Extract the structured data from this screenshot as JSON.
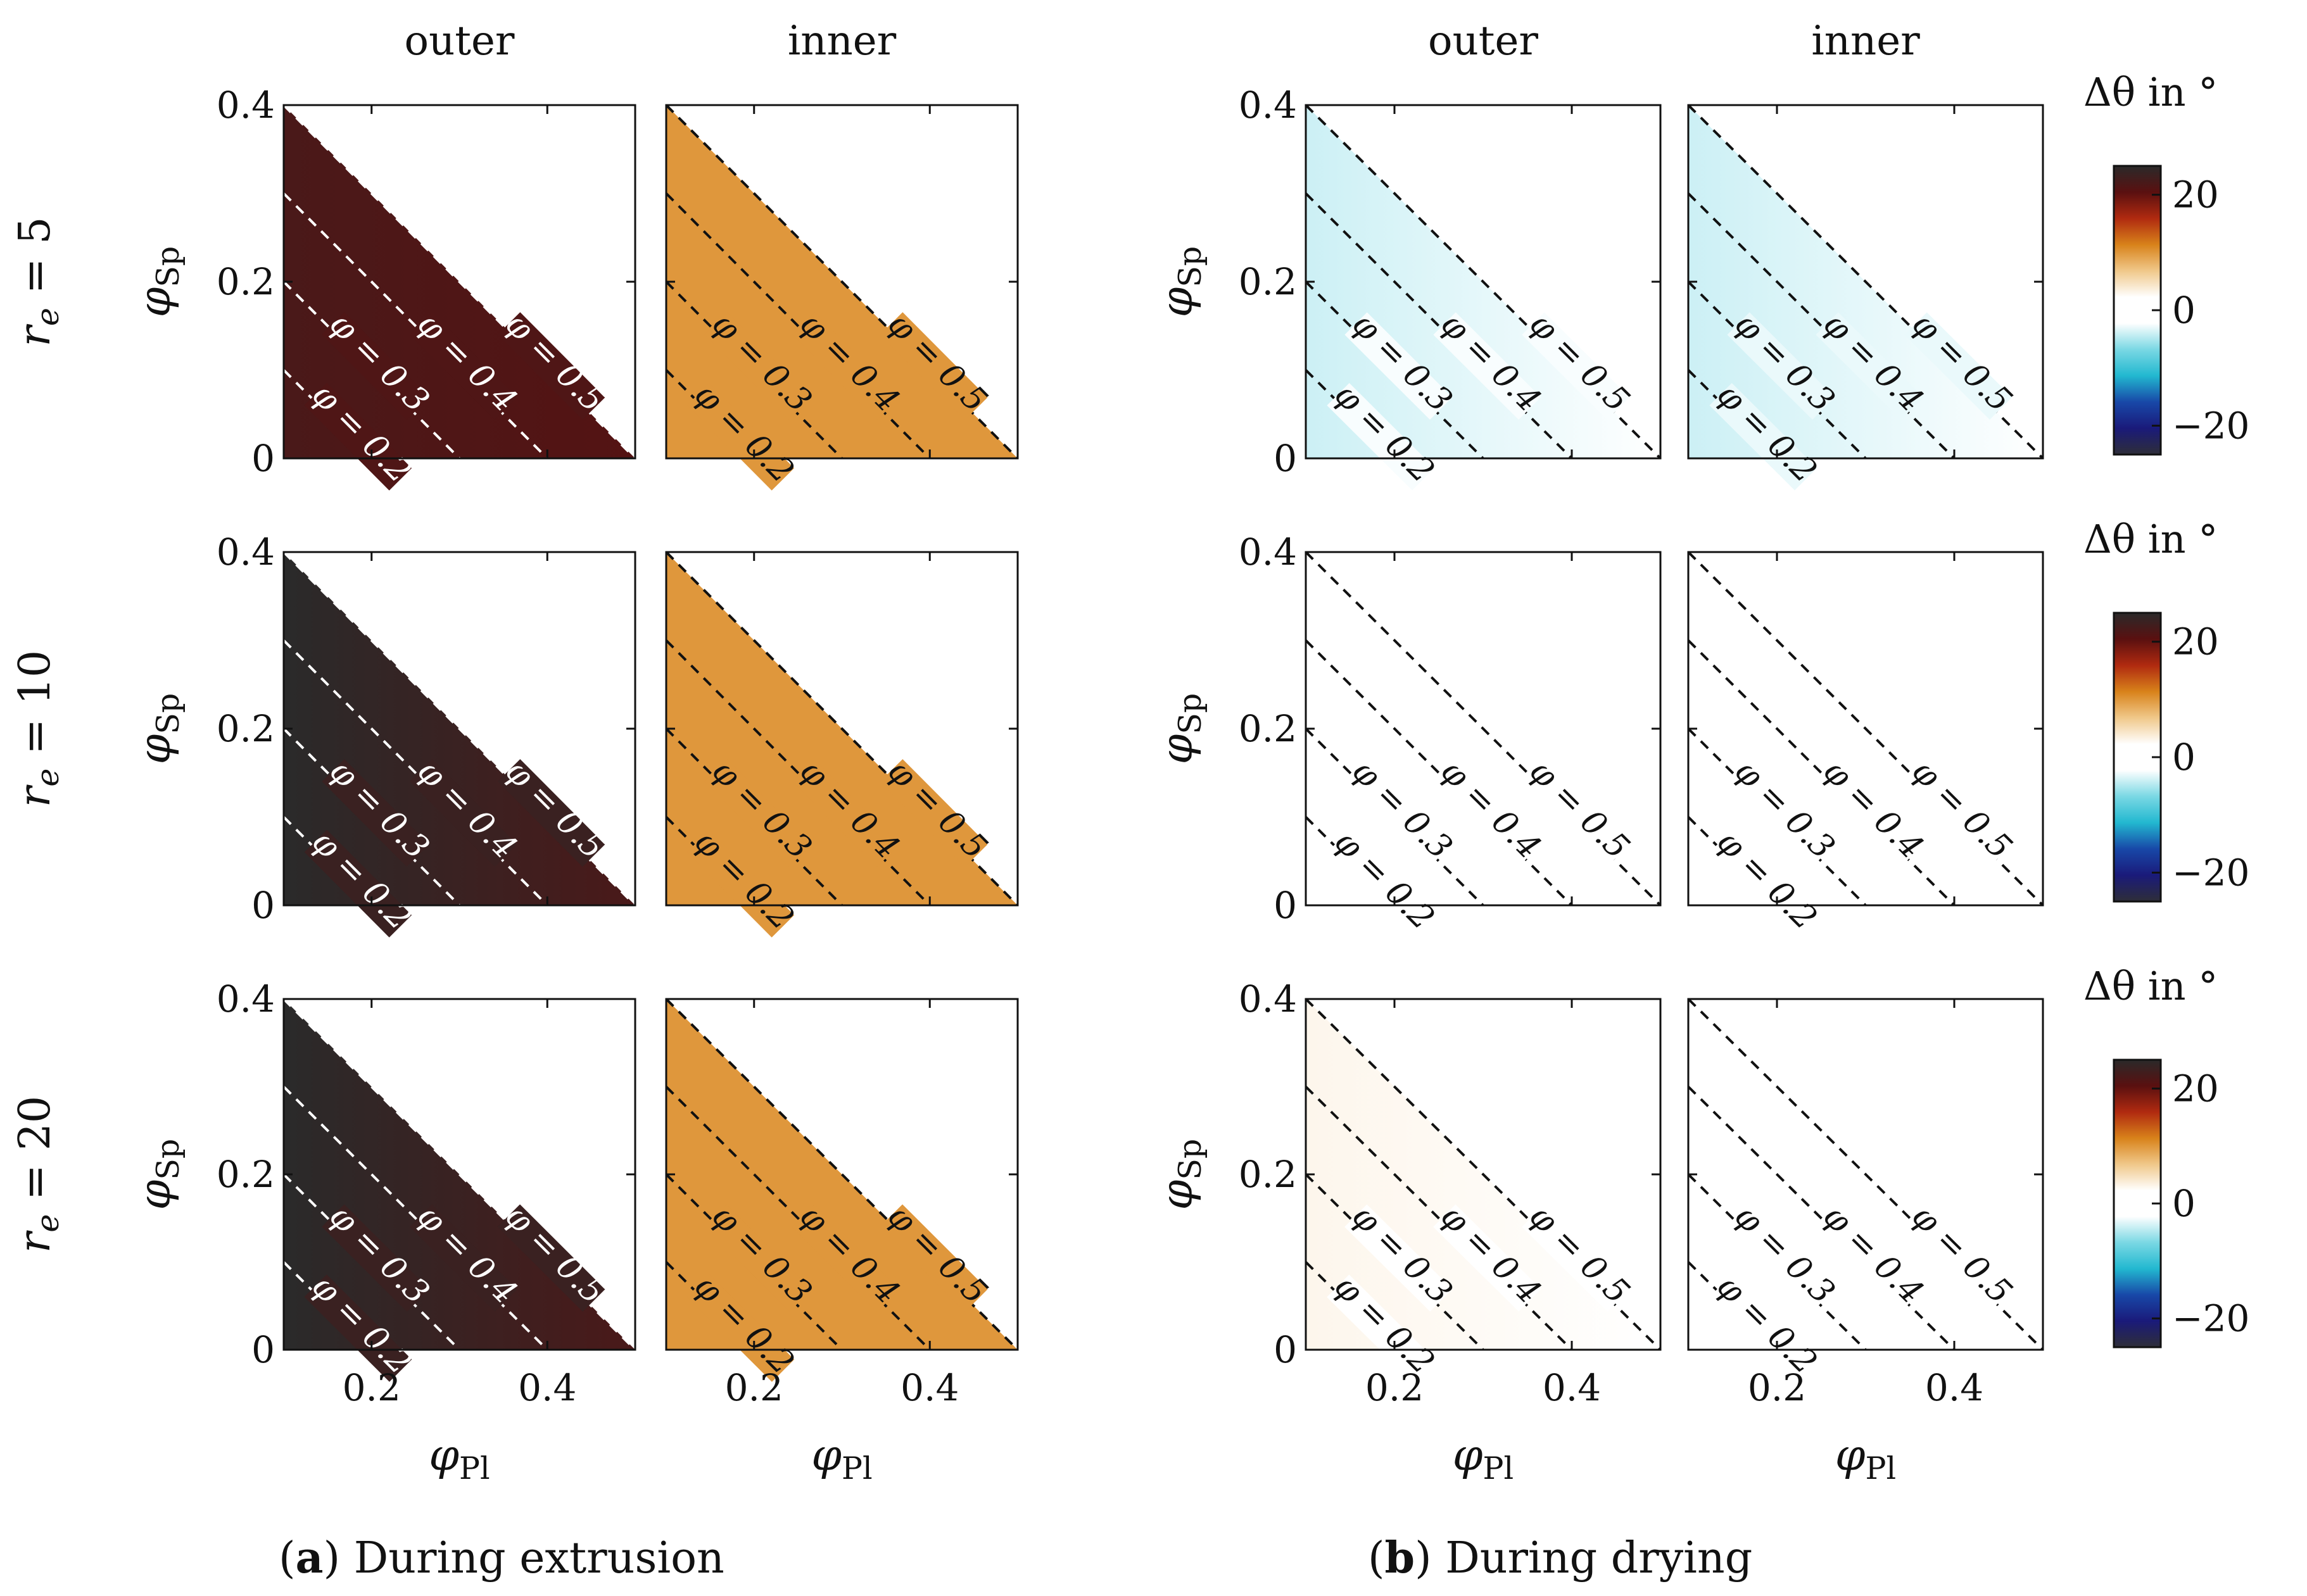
{
  "caption_a": {
    "letter": "a",
    "text": " During extrusion"
  },
  "caption_b": {
    "letter": "b",
    "text": " During drying"
  },
  "chart_data": {
    "type": "heatmap",
    "description_free": true,
    "column_titles": [
      "outer",
      "inner",
      "outer",
      "inner"
    ],
    "row_labels": [
      "r_e = 5",
      "r_e = 10",
      "r_e = 20"
    ],
    "xlabel": "φ_Pl",
    "ylabel": "φ_Sp",
    "xlim": [
      0.1,
      0.5
    ],
    "ylim": [
      0,
      0.4
    ],
    "xticks": [
      0.2,
      0.4
    ],
    "xtick_labels": [
      "0.2",
      "0.4"
    ],
    "yticks": [
      0,
      0.2,
      0.4
    ],
    "ytick_labels": [
      "0",
      "0.2",
      "0.4"
    ],
    "contours": [
      {
        "phi": 0.2,
        "label": "φ = 0.2"
      },
      {
        "phi": 0.3,
        "label": "φ = 0.3"
      },
      {
        "phi": 0.4,
        "label": "φ = 0.4"
      },
      {
        "phi": 0.5,
        "label": "φ = 0.5"
      }
    ],
    "colorbar": {
      "title": "Δθ in °",
      "range": [
        -25,
        25
      ],
      "ticks": [
        20,
        0,
        -20
      ],
      "tick_labels": [
        "20",
        "0",
        "−20"
      ],
      "colors": [
        "#2a2a2a",
        "#5a1010",
        "#b02a10",
        "#d8821a",
        "#f0c88a",
        "#ffffff",
        "#ffffff",
        "#7ad8e4",
        "#22b8d0",
        "#1848a8",
        "#1a1a7a",
        "#2e2e38"
      ]
    },
    "panels": [
      {
        "group": "a",
        "row": 0,
        "col": 0,
        "value_left": 22,
        "value_right": 21,
        "contour_color": "#ffffff"
      },
      {
        "group": "a",
        "row": 0,
        "col": 1,
        "value_left": 10,
        "value_right": 10,
        "contour_color": "#111111"
      },
      {
        "group": "a",
        "row": 1,
        "col": 0,
        "value_left": 25,
        "value_right": 22,
        "contour_color": "#ffffff"
      },
      {
        "group": "a",
        "row": 1,
        "col": 1,
        "value_left": 10,
        "value_right": 10,
        "contour_color": "#111111"
      },
      {
        "group": "a",
        "row": 2,
        "col": 0,
        "value_left": 25,
        "value_right": 22,
        "contour_color": "#ffffff"
      },
      {
        "group": "a",
        "row": 2,
        "col": 1,
        "value_left": 10,
        "value_right": 10,
        "contour_color": "#111111"
      },
      {
        "group": "b",
        "row": 0,
        "col": 0,
        "value_left": -4,
        "value_right": -1,
        "contour_color": "#111111"
      },
      {
        "group": "b",
        "row": 0,
        "col": 1,
        "value_left": -4,
        "value_right": -2,
        "contour_color": "#111111"
      },
      {
        "group": "b",
        "row": 1,
        "col": 0,
        "value_left": 2,
        "value_right": -1,
        "contour_color": "#111111"
      },
      {
        "group": "b",
        "row": 1,
        "col": 1,
        "value_left": 2,
        "value_right": 1,
        "contour_color": "#111111"
      },
      {
        "group": "b",
        "row": 2,
        "col": 0,
        "value_left": 3,
        "value_right": 1,
        "contour_color": "#111111"
      },
      {
        "group": "b",
        "row": 2,
        "col": 1,
        "value_left": -2,
        "value_right": 2,
        "contour_color": "#111111"
      }
    ]
  }
}
